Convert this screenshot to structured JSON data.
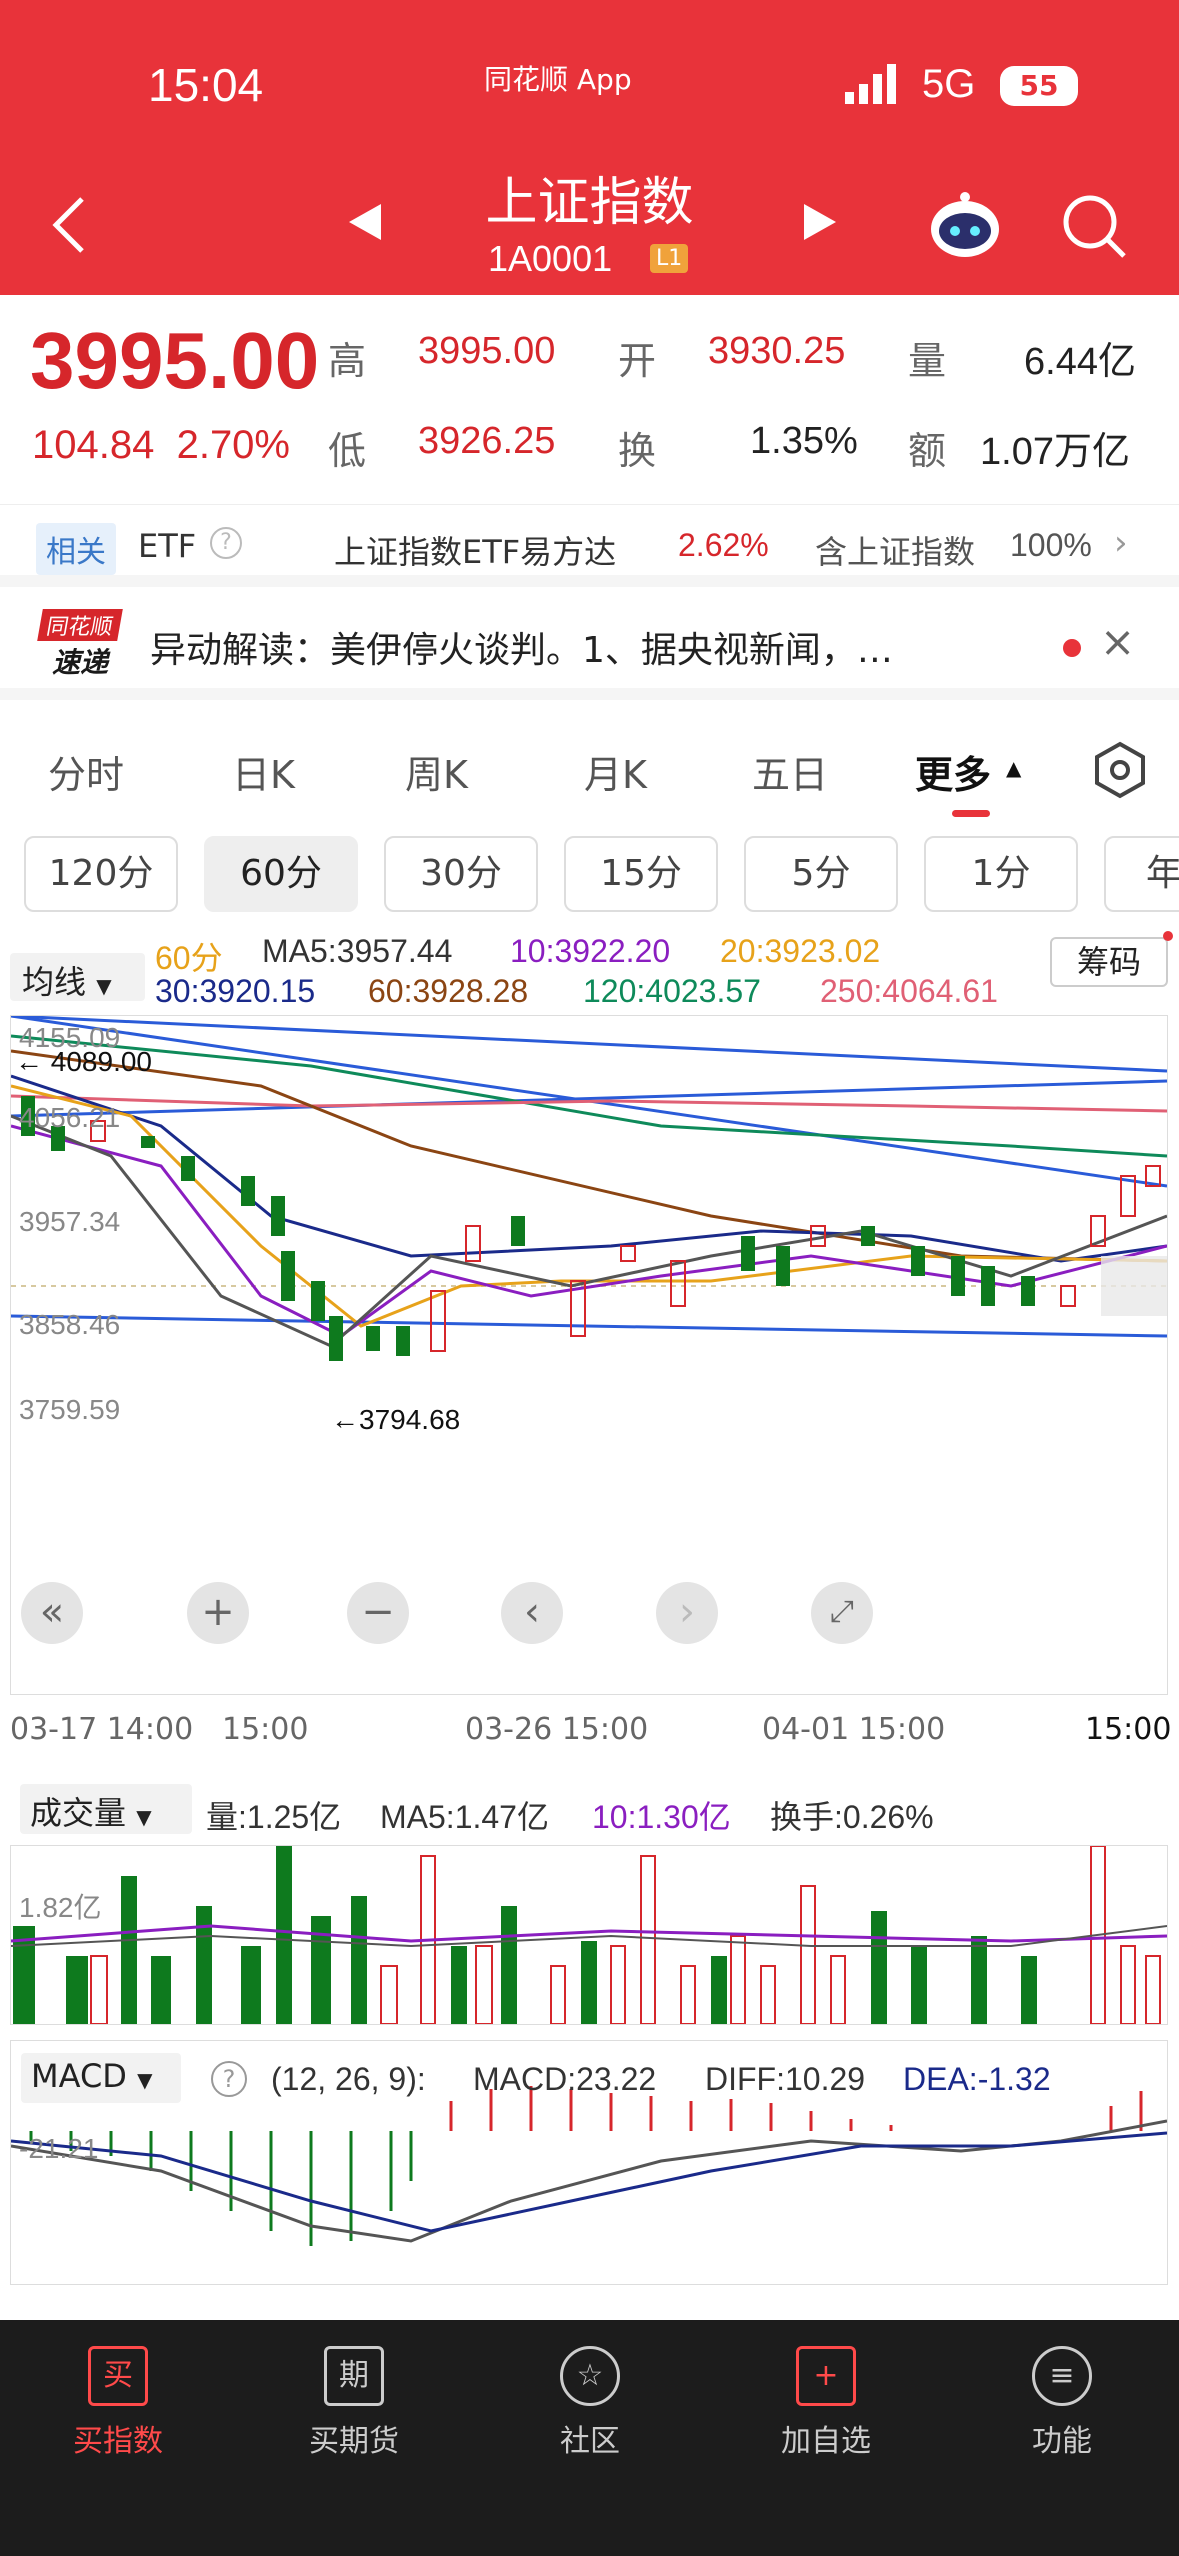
{
  "status": {
    "time": "15:04",
    "app": "同花顺 App",
    "network": "5G",
    "battery": "55"
  },
  "nav": {
    "title": "上证指数",
    "code": "1A0001",
    "badge": "L1"
  },
  "quote": {
    "price": "3995.00",
    "change": "104.84",
    "change_pct": "2.70%",
    "high_label": "高",
    "high": "3995.00",
    "open_label": "开",
    "open": "3930.25",
    "vol_label": "量",
    "vol": "6.44亿",
    "low_label": "低",
    "low": "3926.25",
    "turn_label": "换",
    "turn": "1.35%",
    "amt_label": "额",
    "amt": "1.07万亿"
  },
  "etf": {
    "tag": "相关",
    "label": "ETF",
    "name": "上证指数ETF易方达",
    "pct": "2.62%",
    "contains": "含上证指数",
    "weight": "100%"
  },
  "news": {
    "logo_top": "同花顺",
    "logo_bottom": "速递",
    "text": "异动解读：美伊停火谈判。1、据央视新闻，…"
  },
  "tabs": [
    "分时",
    "日K",
    "周K",
    "月K",
    "五日",
    "更多"
  ],
  "periods": [
    "120分",
    "60分",
    "30分",
    "15分",
    "5分",
    "1分",
    "年"
  ],
  "ma": {
    "selector": "均线",
    "period": "60分",
    "ma5": "MA5:3957.44",
    "ma10": "10:3922.20",
    "ma20": "20:3923.02",
    "ma30": "30:3920.15",
    "ma60": "60:3928.28",
    "ma120": "120:4023.57",
    "ma250": "250:4064.61",
    "chips": "筹码"
  },
  "chart": {
    "y1": "4155.09",
    "y2": "4056.21",
    "y3": "3957.34",
    "y4": "3858.46",
    "y5": "3759.59",
    "high_mark": "4089.00",
    "low_mark": "←3794.68"
  },
  "xaxis": [
    "03-17 14:00",
    "15:00",
    "03-26 15:00",
    "04-01 15:00",
    "15:00"
  ],
  "volume": {
    "selector": "成交量",
    "vol": "量:1.25亿",
    "ma5": "MA5:1.47亿",
    "ma10": "10:1.30亿",
    "turnover": "换手:0.26%",
    "ylab": "1.82亿"
  },
  "macd": {
    "selector": "MACD",
    "params": "(12, 26, 9):",
    "macd": "MACD:23.22",
    "diff": "DIFF:10.29",
    "dea": "DEA:-1.32",
    "ylab": "-21.21"
  },
  "bottom": [
    "买指数",
    "买期货",
    "社区",
    "加自选",
    "功能"
  ],
  "bottom_icons": [
    "买",
    "期",
    "☆",
    "+",
    "≡"
  ],
  "colors": {
    "up": "#d6262b",
    "down": "#0e7a1e",
    "header": "#e8333a"
  }
}
